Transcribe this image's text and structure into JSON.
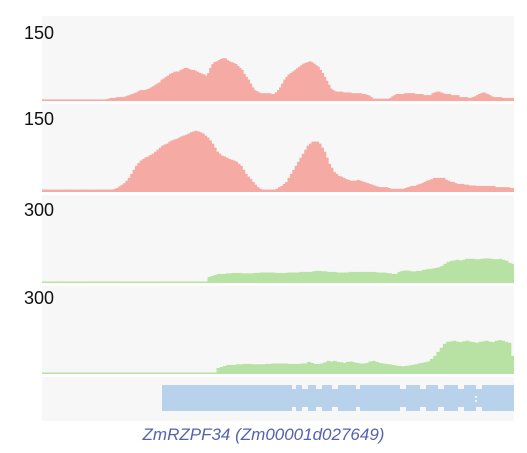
{
  "tracks": [
    {
      "label": "150",
      "max": 150,
      "color": "#f5aaa3",
      "kind": "atac",
      "values": [
        4,
        4,
        4,
        4,
        4,
        4,
        4,
        4,
        4,
        4,
        4,
        4,
        4,
        4,
        4,
        4,
        4,
        4,
        4,
        4,
        4,
        4,
        4,
        4,
        4,
        4,
        4,
        4,
        4,
        4,
        5,
        6,
        8,
        8,
        8,
        10,
        10,
        10,
        10,
        12,
        14,
        16,
        18,
        20,
        22,
        25,
        28,
        28,
        28,
        30,
        32,
        35,
        38,
        42,
        45,
        48,
        55,
        58,
        62,
        65,
        70,
        72,
        75,
        76,
        76,
        80,
        82,
        85,
        85,
        82,
        80,
        80,
        78,
        75,
        72,
        70,
        68,
        65,
        72,
        85,
        95,
        100,
        102,
        105,
        108,
        110,
        110,
        105,
        102,
        100,
        98,
        95,
        90,
        85,
        80,
        70,
        62,
        55,
        45,
        35,
        28,
        25,
        22,
        20,
        20,
        20,
        20,
        20,
        18,
        18,
        22,
        28,
        35,
        45,
        55,
        62,
        68,
        72,
        76,
        80,
        84,
        88,
        92,
        96,
        98,
        100,
        102,
        100,
        96,
        92,
        88,
        80,
        72,
        62,
        52,
        42,
        32,
        28,
        25,
        24,
        24,
        24,
        22,
        22,
        22,
        22,
        20,
        20,
        20,
        20,
        20,
        18,
        18,
        16,
        14,
        10,
        6,
        6,
        6,
        6,
        6,
        6,
        6,
        6,
        8,
        12,
        15,
        18,
        18,
        18,
        18,
        20,
        20,
        20,
        20,
        20,
        18,
        18,
        18,
        18,
        15,
        15,
        15,
        15,
        20,
        22,
        24,
        24,
        22,
        20,
        18,
        18,
        18,
        15,
        15,
        15,
        15,
        10,
        10,
        10,
        10,
        8,
        8,
        10,
        12,
        15,
        18,
        20,
        22,
        20,
        18,
        15,
        12,
        10,
        10,
        10,
        10,
        8,
        8,
        8,
        8,
        8,
        8
      ]
    },
    {
      "label": "150",
      "max": 150,
      "color": "#f5aaa3",
      "kind": "atac",
      "values": [
        6,
        6,
        6,
        6,
        6,
        6,
        6,
        6,
        6,
        6,
        6,
        6,
        6,
        6,
        6,
        6,
        6,
        6,
        6,
        6,
        6,
        6,
        6,
        6,
        6,
        6,
        6,
        6,
        6,
        6,
        8,
        10,
        14,
        18,
        22,
        28,
        35,
        45,
        55,
        65,
        72,
        78,
        82,
        86,
        88,
        92,
        95,
        100,
        105,
        110,
        115,
        118,
        120,
        125,
        128,
        130,
        132,
        135,
        138,
        140,
        142,
        145,
        148,
        150,
        152,
        150,
        148,
        145,
        140,
        135,
        128,
        120,
        110,
        100,
        95,
        90,
        88,
        85,
        82,
        80,
        78,
        75,
        70,
        65,
        55,
        45,
        38,
        32,
        25,
        18,
        12,
        8,
        6,
        6,
        6,
        6,
        6,
        6,
        8,
        12,
        15,
        20,
        25,
        35,
        45,
        55,
        65,
        75,
        85,
        95,
        105,
        115,
        120,
        125,
        125,
        125,
        120,
        110,
        100,
        85,
        70,
        60,
        50,
        45,
        40,
        38,
        35,
        32,
        30,
        28,
        28,
        28,
        30,
        28,
        26,
        24,
        22,
        20,
        18,
        16,
        14,
        12,
        12,
        12,
        12,
        10,
        8,
        8,
        8,
        8,
        8,
        8,
        10,
        12,
        14,
        15,
        15,
        18,
        20,
        22,
        25,
        28,
        30,
        32,
        35,
        35,
        35,
        35,
        35,
        30,
        28,
        25,
        25,
        22,
        20,
        20,
        20,
        18,
        18,
        16,
        16,
        16,
        15,
        15,
        15,
        15,
        15,
        15,
        15,
        15,
        12,
        12,
        12,
        12,
        12,
        12,
        10,
        10
      ]
    },
    {
      "label": "300",
      "max": 300,
      "color": "#b8e2a4",
      "kind": "rna",
      "values": [
        4,
        4,
        4,
        4,
        4,
        4,
        4,
        4,
        4,
        4,
        4,
        4,
        4,
        4,
        4,
        4,
        4,
        4,
        4,
        4,
        4,
        4,
        4,
        4,
        4,
        4,
        4,
        4,
        4,
        4,
        4,
        4,
        4,
        4,
        4,
        4,
        4,
        4,
        4,
        4,
        4,
        4,
        4,
        4,
        4,
        4,
        4,
        4,
        4,
        4,
        4,
        4,
        4,
        4,
        30,
        35,
        40,
        45,
        45,
        45,
        48,
        48,
        50,
        50,
        50,
        48,
        48,
        48,
        48,
        50,
        50,
        52,
        52,
        52,
        52,
        52,
        50,
        50,
        50,
        50,
        52,
        52,
        52,
        52,
        55,
        55,
        55,
        55,
        58,
        60,
        60,
        58,
        58,
        55,
        55,
        55,
        52,
        52,
        52,
        52,
        55,
        55,
        55,
        55,
        55,
        55,
        55,
        55,
        55,
        52,
        52,
        52,
        50,
        48,
        45,
        45,
        55,
        60,
        62,
        62,
        58,
        58,
        60,
        60,
        65,
        68,
        70,
        72,
        75,
        78,
        85,
        95,
        105,
        110,
        112,
        115,
        112,
        115,
        120,
        120,
        120,
        118,
        118,
        120,
        122,
        122,
        120,
        118,
        118,
        120,
        115,
        110,
        100,
        95
      ]
    },
    {
      "label": "300",
      "max": 300,
      "color": "#b8e2a4",
      "kind": "rna",
      "values": [
        4,
        4,
        4,
        4,
        4,
        4,
        4,
        4,
        4,
        4,
        4,
        4,
        4,
        4,
        4,
        4,
        4,
        4,
        4,
        4,
        4,
        4,
        4,
        4,
        4,
        4,
        4,
        4,
        4,
        4,
        4,
        4,
        4,
        4,
        4,
        4,
        4,
        4,
        4,
        4,
        4,
        4,
        4,
        4,
        4,
        4,
        4,
        4,
        4,
        4,
        4,
        4,
        4,
        4,
        30,
        35,
        40,
        45,
        45,
        45,
        48,
        48,
        50,
        50,
        50,
        48,
        48,
        48,
        48,
        50,
        50,
        52,
        52,
        52,
        52,
        52,
        50,
        50,
        50,
        50,
        52,
        52,
        60,
        55,
        50,
        50,
        52,
        58,
        65,
        62,
        65,
        60,
        58,
        55,
        60,
        62,
        58,
        55,
        52,
        52,
        55,
        62,
        65,
        60,
        55,
        52,
        50,
        48,
        45,
        42,
        40,
        38,
        40,
        42,
        45,
        48,
        52,
        55,
        58,
        62,
        75,
        90,
        110,
        130,
        150,
        160,
        162,
        165,
        160,
        158,
        162,
        165,
        160,
        158,
        155,
        160,
        162,
        165,
        160,
        158,
        165,
        168,
        165,
        160,
        155,
        90
      ]
    }
  ],
  "gene_model": {
    "color": "#b9d2ec",
    "name": "ZmRZPF34 (Zm00001d027649)",
    "name_color": "#5562b0"
  }
}
